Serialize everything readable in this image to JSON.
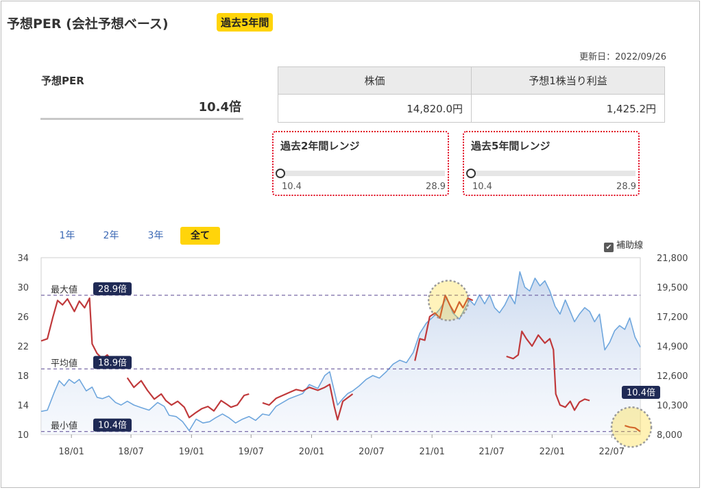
{
  "header": {
    "title": "予想PER (会社予想ベース)",
    "badge": "過去5年間",
    "updated": "更新日：2022/09/26"
  },
  "summary": {
    "per_label": "予想PER",
    "per_value": "10.4倍"
  },
  "stock_table": {
    "headers": [
      "株価",
      "予想1株当り利益"
    ],
    "values": [
      "14,820.0円",
      "1,425.2円"
    ]
  },
  "ranges": [
    {
      "title": "過去2年間レンジ",
      "min": "10.4",
      "max": "28.9",
      "current": 10.4
    },
    {
      "title": "過去5年間レンジ",
      "min": "10.4",
      "max": "28.9",
      "current": 10.4
    }
  ],
  "tabs": [
    {
      "label": "1年",
      "active": false
    },
    {
      "label": "2年",
      "active": false
    },
    {
      "label": "3年",
      "active": false
    },
    {
      "label": "全て",
      "active": true
    }
  ],
  "auxiliary_line": {
    "label": "補助線",
    "checked": true
  },
  "chart_data": {
    "type": "line",
    "title": "",
    "x_ticks": [
      "18/01",
      "18/07",
      "19/01",
      "19/07",
      "20/01",
      "20/07",
      "21/01",
      "21/07",
      "22/01",
      "22/07"
    ],
    "y_left": {
      "min": 10,
      "max": 34,
      "ticks": [
        "34",
        "30",
        "26",
        "22",
        "18",
        "14",
        "10"
      ]
    },
    "y_right": {
      "min": 8000,
      "max": 21800,
      "ticks": [
        "21,800",
        "19,500",
        "17,200",
        "14,900",
        "12,600",
        "10,300",
        "8,000"
      ]
    },
    "reference_lines": [
      {
        "name": "最大値",
        "value": 28.9,
        "label": "28.9倍"
      },
      {
        "name": "平均値",
        "value": 18.9,
        "label": "18.9倍"
      },
      {
        "name": "最小値",
        "value": 10.4,
        "label": "10.4倍"
      }
    ],
    "current_label": "10.4倍",
    "colors": {
      "per": "#c0393b",
      "price": "#6ea6dd",
      "area_top": "#c9d8ee",
      "ref_line": "#6b5a9e",
      "tag_bg": "#1f2a55",
      "highlight": "#ffd40a"
    },
    "series": [
      {
        "axis": "left",
        "segments": [
          [
            [
              "2017-10-01",
              22.7
            ],
            [
              "2017-10-20",
              23.0
            ],
            [
              "2017-11-05",
              25.8
            ],
            [
              "2017-11-20",
              28.2
            ],
            [
              "2017-12-05",
              27.6
            ],
            [
              "2017-12-20",
              28.4
            ],
            [
              "2018-01-10",
              26.7
            ],
            [
              "2018-01-25",
              28.1
            ],
            [
              "2018-02-10",
              27.2
            ],
            [
              "2018-02-25",
              28.5
            ],
            [
              "2018-03-05",
              22.3
            ],
            [
              "2018-03-20",
              21.0
            ],
            [
              "2018-04-05",
              20.3
            ],
            [
              "2018-04-20",
              20.8
            ],
            [
              "2018-05-05",
              20.0
            ],
            [
              "2018-05-20",
              20.6
            ]
          ],
          [
            [
              "2018-06-20",
              17.7
            ],
            [
              "2018-07-10",
              16.4
            ],
            [
              "2018-08-01",
              17.3
            ],
            [
              "2018-08-20",
              16.0
            ],
            [
              "2018-09-10",
              14.8
            ],
            [
              "2018-10-01",
              15.5
            ],
            [
              "2018-10-15",
              14.6
            ],
            [
              "2018-11-01",
              14.0
            ],
            [
              "2018-11-20",
              14.5
            ],
            [
              "2018-12-10",
              13.7
            ],
            [
              "2018-12-25",
              12.3
            ],
            [
              "2019-01-15",
              13.0
            ],
            [
              "2019-02-01",
              13.5
            ],
            [
              "2019-02-20",
              13.8
            ],
            [
              "2019-03-10",
              13.2
            ],
            [
              "2019-04-01",
              14.6
            ],
            [
              "2019-04-15",
              14.2
            ],
            [
              "2019-05-01",
              13.7
            ],
            [
              "2019-05-20",
              14.0
            ],
            [
              "2019-06-10",
              15.3
            ],
            [
              "2019-06-25",
              15.5
            ]
          ],
          [
            [
              "2019-08-05",
              14.3
            ],
            [
              "2019-08-25",
              14.0
            ],
            [
              "2019-09-15",
              14.9
            ],
            [
              "2019-10-05",
              15.3
            ],
            [
              "2019-10-25",
              15.7
            ],
            [
              "2019-11-15",
              16.1
            ],
            [
              "2019-12-05",
              15.9
            ],
            [
              "2019-12-25",
              16.4
            ],
            [
              "2020-01-20",
              16.0
            ],
            [
              "2020-02-10",
              16.4
            ],
            [
              "2020-02-25",
              16.8
            ],
            [
              "2020-03-10",
              13.8
            ],
            [
              "2020-03-20",
              12.0
            ],
            [
              "2020-04-05",
              14.5
            ],
            [
              "2020-04-20",
              15.0
            ],
            [
              "2020-05-05",
              15.5
            ]
          ],
          [
            [
              "2020-11-10",
              20.0
            ],
            [
              "2020-11-25",
              23.0
            ],
            [
              "2020-12-10",
              22.8
            ],
            [
              "2020-12-25",
              26.0
            ],
            [
              "2021-01-10",
              26.5
            ],
            [
              "2021-01-25",
              25.8
            ],
            [
              "2021-02-10",
              28.9
            ],
            [
              "2021-02-25",
              27.5
            ],
            [
              "2021-03-10",
              26.5
            ],
            [
              "2021-03-25",
              28.0
            ],
            [
              "2021-04-05",
              27.2
            ],
            [
              "2021-04-20",
              28.5
            ],
            [
              "2021-05-05",
              28.2
            ]
          ],
          [
            [
              "2021-08-15",
              20.6
            ],
            [
              "2021-09-05",
              20.3
            ],
            [
              "2021-09-20",
              20.8
            ],
            [
              "2021-10-01",
              24.0
            ],
            [
              "2021-10-15",
              23.0
            ],
            [
              "2021-11-01",
              22.0
            ],
            [
              "2021-11-20",
              23.5
            ],
            [
              "2021-12-10",
              22.4
            ],
            [
              "2021-12-25",
              23.0
            ],
            [
              "2022-01-05",
              21.5
            ],
            [
              "2022-01-12",
              15.5
            ],
            [
              "2022-01-25",
              14.0
            ],
            [
              "2022-02-10",
              13.7
            ],
            [
              "2022-02-25",
              14.5
            ],
            [
              "2022-03-10",
              13.3
            ],
            [
              "2022-03-25",
              14.4
            ],
            [
              "2022-04-10",
              14.8
            ],
            [
              "2022-04-25",
              14.6
            ]
          ],
          [
            [
              "2022-08-10",
              11.2
            ],
            [
              "2022-08-25",
              11.0
            ],
            [
              "2022-09-10",
              10.9
            ],
            [
              "2022-09-26",
              10.4
            ]
          ]
        ]
      },
      {
        "axis": "right",
        "segments": [
          [
            [
              "2017-10-01",
              9800
            ],
            [
              "2017-10-20",
              9900
            ],
            [
              "2017-11-10",
              11300
            ],
            [
              "2017-11-25",
              12200
            ],
            [
              "2017-12-10",
              11800
            ],
            [
              "2017-12-25",
              12300
            ],
            [
              "2018-01-10",
              12000
            ],
            [
              "2018-01-25",
              12300
            ],
            [
              "2018-02-15",
              11400
            ],
            [
              "2018-03-05",
              11700
            ],
            [
              "2018-03-20",
              10900
            ],
            [
              "2018-04-05",
              10800
            ],
            [
              "2018-04-25",
              11000
            ],
            [
              "2018-05-15",
              10500
            ],
            [
              "2018-06-01",
              10300
            ],
            [
              "2018-06-20",
              10600
            ],
            [
              "2018-07-10",
              10300
            ],
            [
              "2018-08-01",
              10100
            ],
            [
              "2018-08-25",
              9900
            ],
            [
              "2018-09-20",
              10500
            ],
            [
              "2018-10-10",
              10200
            ],
            [
              "2018-10-25",
              9500
            ],
            [
              "2018-11-15",
              9400
            ],
            [
              "2018-12-05",
              9000
            ],
            [
              "2018-12-25",
              8300
            ],
            [
              "2019-01-15",
              9200
            ],
            [
              "2019-02-05",
              8900
            ],
            [
              "2019-02-25",
              9000
            ],
            [
              "2019-03-15",
              9300
            ],
            [
              "2019-04-05",
              9600
            ],
            [
              "2019-04-25",
              9300
            ],
            [
              "2019-05-15",
              8900
            ],
            [
              "2019-06-05",
              9200
            ],
            [
              "2019-06-25",
              9400
            ],
            [
              "2019-07-15",
              9100
            ],
            [
              "2019-08-05",
              9600
            ],
            [
              "2019-08-25",
              9500
            ],
            [
              "2019-09-15",
              10200
            ],
            [
              "2019-10-05",
              10500
            ],
            [
              "2019-10-25",
              10800
            ],
            [
              "2019-11-15",
              11000
            ],
            [
              "2019-12-05",
              11200
            ],
            [
              "2019-12-25",
              11900
            ],
            [
              "2020-01-20",
              11600
            ],
            [
              "2020-02-10",
              12600
            ],
            [
              "2020-02-25",
              12900
            ],
            [
              "2020-03-10",
              11400
            ],
            [
              "2020-03-20",
              10300
            ],
            [
              "2020-04-05",
              10800
            ],
            [
              "2020-04-20",
              11200
            ],
            [
              "2020-05-05",
              11400
            ],
            [
              "2020-05-25",
              11800
            ],
            [
              "2020-06-15",
              12300
            ],
            [
              "2020-07-05",
              12600
            ],
            [
              "2020-07-25",
              12400
            ],
            [
              "2020-08-15",
              12900
            ],
            [
              "2020-09-05",
              13500
            ],
            [
              "2020-09-25",
              13800
            ],
            [
              "2020-10-15",
              13600
            ],
            [
              "2020-11-05",
              14400
            ],
            [
              "2020-11-25",
              15900
            ],
            [
              "2020-12-15",
              16700
            ],
            [
              "2021-01-05",
              17200
            ],
            [
              "2021-01-25",
              17800
            ],
            [
              "2021-02-15",
              18700
            ],
            [
              "2021-03-05",
              17500
            ],
            [
              "2021-03-25",
              17000
            ],
            [
              "2021-04-10",
              17800
            ],
            [
              "2021-04-25",
              18500
            ],
            [
              "2021-05-10",
              18100
            ],
            [
              "2021-05-25",
              18900
            ],
            [
              "2021-06-10",
              18200
            ],
            [
              "2021-06-25",
              18900
            ],
            [
              "2021-07-10",
              17900
            ],
            [
              "2021-07-25",
              17500
            ],
            [
              "2021-08-10",
              18100
            ],
            [
              "2021-08-25",
              18900
            ],
            [
              "2021-09-10",
              18200
            ],
            [
              "2021-09-25",
              20700
            ],
            [
              "2021-10-10",
              19500
            ],
            [
              "2021-10-25",
              19200
            ],
            [
              "2021-11-10",
              20200
            ],
            [
              "2021-11-25",
              19600
            ],
            [
              "2021-12-10",
              20000
            ],
            [
              "2021-12-25",
              19200
            ],
            [
              "2022-01-10",
              18000
            ],
            [
              "2022-01-25",
              17400
            ],
            [
              "2022-02-10",
              18500
            ],
            [
              "2022-02-25",
              17600
            ],
            [
              "2022-03-10",
              16800
            ],
            [
              "2022-03-25",
              17400
            ],
            [
              "2022-04-10",
              17900
            ],
            [
              "2022-04-25",
              17600
            ],
            [
              "2022-05-10",
              16800
            ],
            [
              "2022-05-25",
              17400
            ],
            [
              "2022-06-10",
              14600
            ],
            [
              "2022-06-25",
              15200
            ],
            [
              "2022-07-10",
              16100
            ],
            [
              "2022-07-25",
              16500
            ],
            [
              "2022-08-10",
              16200
            ],
            [
              "2022-08-25",
              17100
            ],
            [
              "2022-09-10",
              15600
            ],
            [
              "2022-09-26",
              14820
            ]
          ]
        ]
      }
    ]
  }
}
